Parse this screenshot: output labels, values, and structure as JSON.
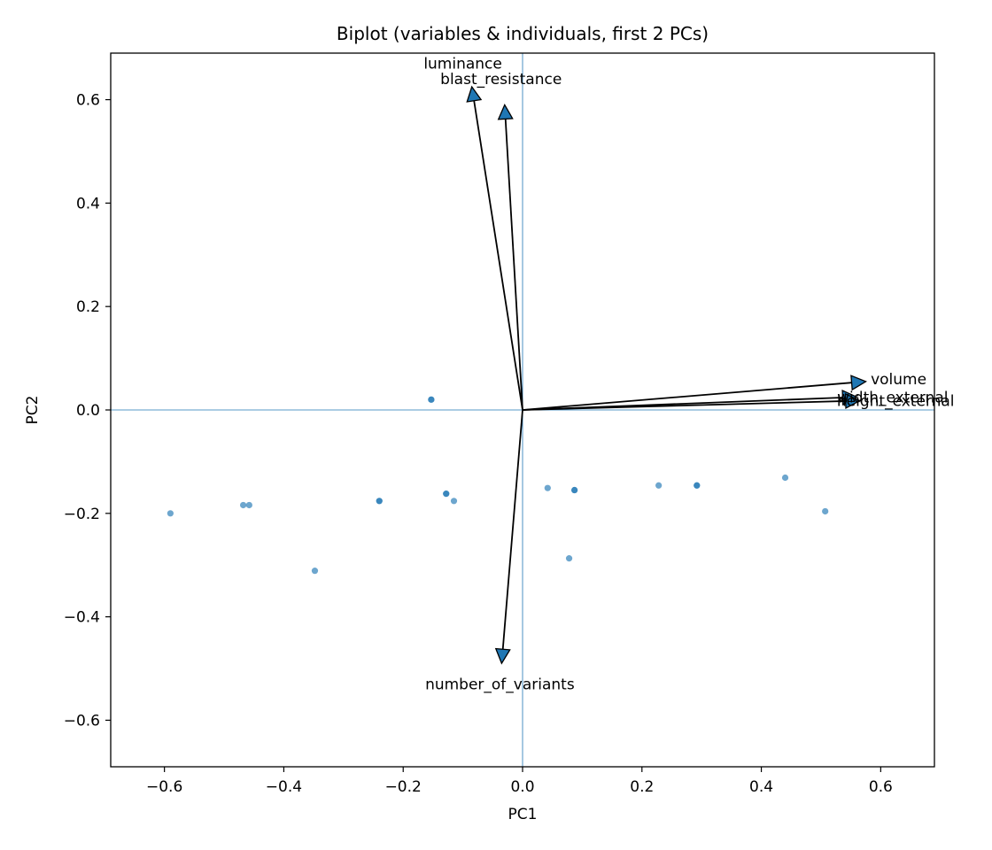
{
  "chart_data": {
    "type": "scatter",
    "title": "Biplot (variables & individuals, first 2 PCs)",
    "xlabel": "PC1",
    "ylabel": "PC2",
    "xlim": [
      -0.69,
      0.69
    ],
    "ylim": [
      -0.69,
      0.69
    ],
    "xticks": [
      -0.6,
      -0.4,
      -0.2,
      0.0,
      0.2,
      0.4,
      0.6
    ],
    "yticks": [
      -0.6,
      -0.4,
      -0.2,
      0.0,
      0.2,
      0.4,
      0.6
    ],
    "xtick_labels": [
      "−0.6",
      "−0.4",
      "−0.2",
      "0.0",
      "0.2",
      "0.4",
      "0.6"
    ],
    "ytick_labels": [
      "−0.6",
      "−0.4",
      "−0.2",
      "0.0",
      "0.2",
      "0.4",
      "0.6"
    ],
    "reference_lines": {
      "x": 0.0,
      "y": 0.0
    },
    "colors": {
      "points": "#1f77b4",
      "arrow_head": "#1f77b4",
      "arrow_line": "#000000",
      "reference": "#1f77b4"
    },
    "individuals": [
      {
        "x": -0.59,
        "y": -0.2
      },
      {
        "x": -0.468,
        "y": -0.184
      },
      {
        "x": -0.458,
        "y": -0.184
      },
      {
        "x": -0.348,
        "y": -0.311
      },
      {
        "x": -0.24,
        "y": -0.176
      },
      {
        "x": -0.24,
        "y": -0.176
      },
      {
        "x": -0.153,
        "y": 0.02
      },
      {
        "x": -0.153,
        "y": 0.02
      },
      {
        "x": -0.128,
        "y": -0.162
      },
      {
        "x": -0.128,
        "y": -0.162
      },
      {
        "x": -0.115,
        "y": -0.176
      },
      {
        "x": 0.042,
        "y": -0.151
      },
      {
        "x": 0.078,
        "y": -0.287
      },
      {
        "x": 0.087,
        "y": -0.155
      },
      {
        "x": 0.087,
        "y": -0.155
      },
      {
        "x": 0.228,
        "y": -0.146
      },
      {
        "x": 0.292,
        "y": -0.146
      },
      {
        "x": 0.292,
        "y": -0.146
      },
      {
        "x": 0.44,
        "y": -0.131
      },
      {
        "x": 0.507,
        "y": -0.196
      }
    ],
    "loadings": [
      {
        "name": "luminance",
        "x": -0.085,
        "y": 0.625,
        "label_x": -0.1,
        "label_y": 0.67
      },
      {
        "name": "blast_resistance",
        "x": -0.03,
        "y": 0.59,
        "label_x": -0.036,
        "label_y": 0.64
      },
      {
        "name": "volume",
        "x": 0.575,
        "y": 0.055,
        "label_x": 0.63,
        "label_y": 0.06
      },
      {
        "name": "width_external",
        "x": 0.56,
        "y": 0.025,
        "label_x": 0.62,
        "label_y": 0.025
      },
      {
        "name": "height_external",
        "x": 0.565,
        "y": 0.018,
        "label_x": 0.625,
        "label_y": 0.018
      },
      {
        "name": "number_of_variants",
        "x": -0.035,
        "y": -0.49,
        "label_x": -0.038,
        "label_y": -0.53
      }
    ]
  }
}
